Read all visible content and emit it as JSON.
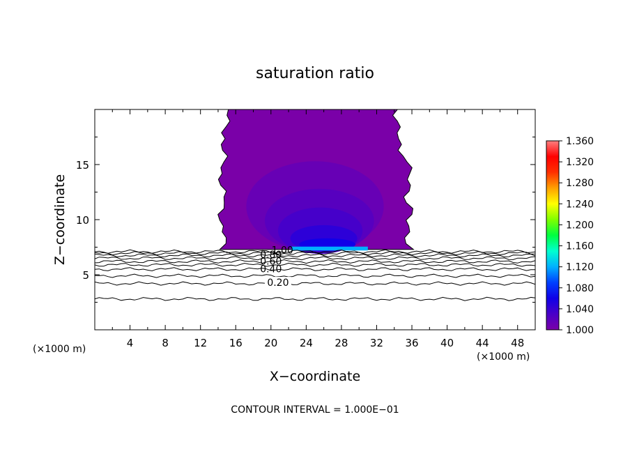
{
  "chart_data": {
    "type": "contour",
    "title": "saturation ratio",
    "xlabel": "X−coordinate",
    "ylabel": "Z−coordinate",
    "x_unit_left": "(×1000 m)",
    "x_unit_right": "(×1000 m)",
    "footer": "CONTOUR INTERVAL = 1.000E−01",
    "xlim": [
      0,
      50
    ],
    "ylim": [
      0,
      20
    ],
    "x_ticks": [
      "4",
      "8",
      "12",
      "16",
      "20",
      "24",
      "28",
      "32",
      "36",
      "40",
      "44",
      "48"
    ],
    "y_ticks": [
      "5",
      "10",
      "15"
    ],
    "colorbar": {
      "labels": [
        "1.360",
        "1.320",
        "1.280",
        "1.240",
        "1.200",
        "1.160",
        "1.120",
        "1.080",
        "1.040",
        "1.000"
      ],
      "min": 1.0,
      "max": 1.36,
      "colors": [
        "#7a00a8",
        "#4a00c8",
        "#1000e8",
        "#0040ff",
        "#00b0ff",
        "#00ffd0",
        "#00ff40",
        "#80ff00",
        "#ffff00",
        "#ffa000",
        "#ff3000",
        "#ff0000",
        "#ff8080"
      ]
    },
    "contour_line_labels": [
      "0.20",
      "0.40",
      "0.60",
      "0.80",
      "1.00"
    ],
    "contour_levels": [
      {
        "value": 0.1,
        "z": 2.8
      },
      {
        "value": 0.2,
        "z": 4.2
      },
      {
        "value": 0.3,
        "z": 4.9
      },
      {
        "value": 0.4,
        "z": 5.5
      },
      {
        "value": 0.5,
        "z": 5.9
      },
      {
        "value": 0.6,
        "z": 6.2
      },
      {
        "value": 0.7,
        "z": 6.5
      },
      {
        "value": 0.8,
        "z": 6.75
      },
      {
        "value": 0.9,
        "z": 6.95
      },
      {
        "value": 1.0,
        "z": 7.1
      }
    ],
    "supersaturated_region": {
      "x_range": [
        14.5,
        36.0
      ],
      "z_range": [
        7.3,
        20.0
      ],
      "base_value": 1.0,
      "max_value": 1.12
    }
  }
}
